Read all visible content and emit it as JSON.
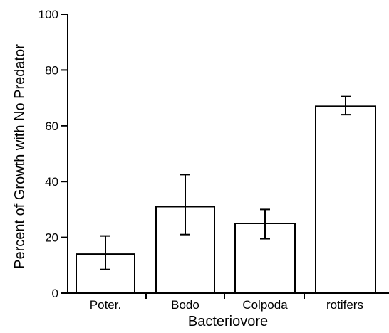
{
  "chart_data": {
    "type": "bar",
    "title": "",
    "xlabel": "Bacteriovore",
    "ylabel": "Percent of Growth with No Predator",
    "categories": [
      "Poter.",
      "Bodo",
      "Colpoda",
      "rotifers"
    ],
    "values": [
      14,
      31,
      25,
      67
    ],
    "error_low": [
      8.5,
      21,
      19.5,
      64
    ],
    "error_high": [
      20.5,
      42.5,
      30,
      70.5
    ],
    "ylim": [
      0,
      100
    ],
    "yticks": [
      0,
      20,
      40,
      60,
      80,
      100
    ],
    "ytick_labels": [
      "0",
      "20",
      "40",
      "60",
      "80",
      "100"
    ],
    "grid": false,
    "bar_fill": "#ffffff",
    "bar_stroke": "#000000"
  }
}
